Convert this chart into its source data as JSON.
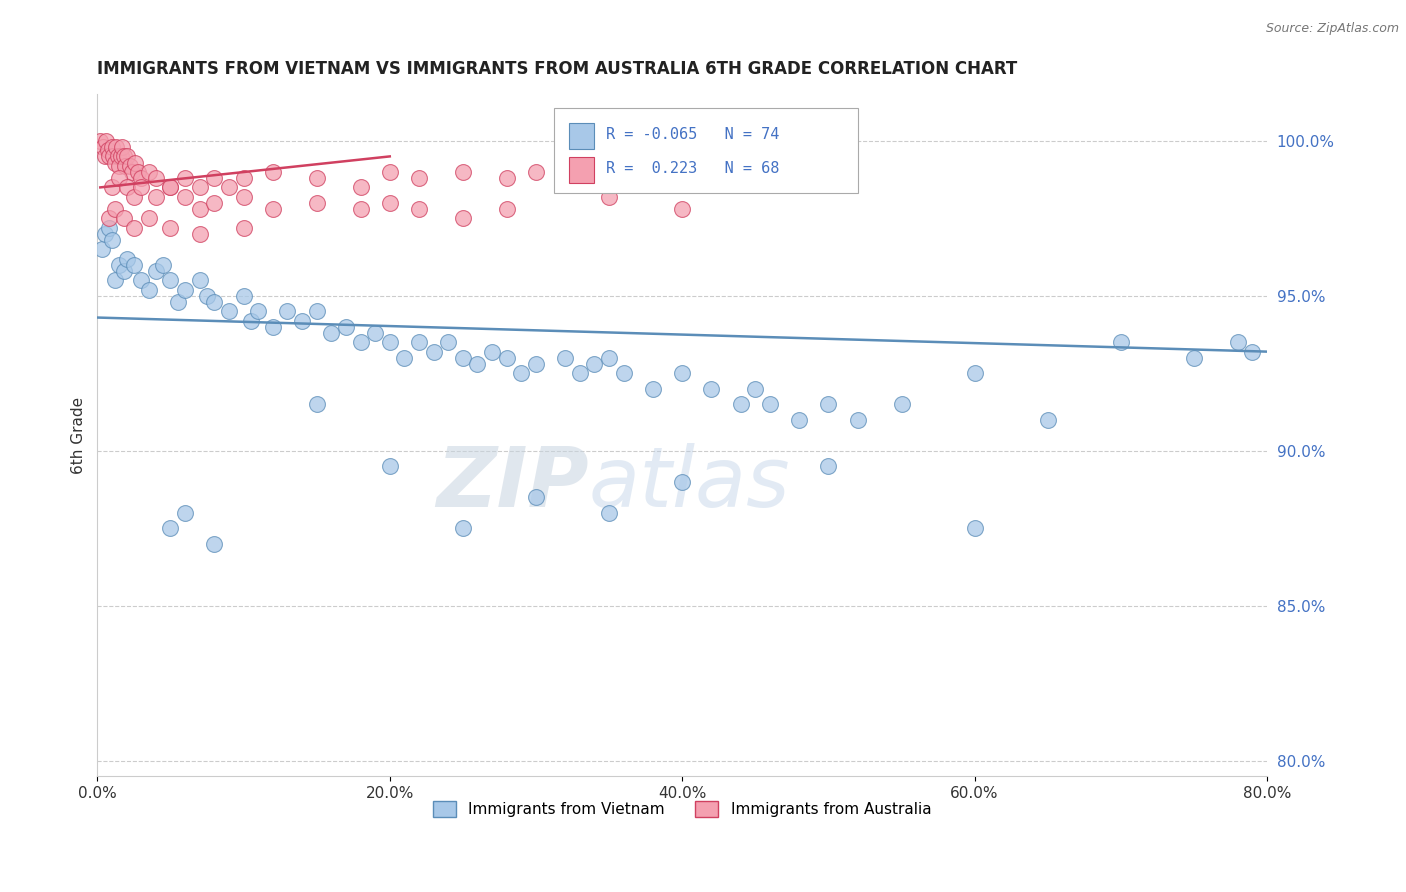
{
  "title": "IMMIGRANTS FROM VIETNAM VS IMMIGRANTS FROM AUSTRALIA 6TH GRADE CORRELATION CHART",
  "source": "Source: ZipAtlas.com",
  "ylabel": "6th Grade",
  "legend_label1": "Immigrants from Vietnam",
  "legend_label2": "Immigrants from Australia",
  "R1": "-0.065",
  "N1": "74",
  "R2": "0.223",
  "N2": "68",
  "xlim": [
    0.0,
    80.0
  ],
  "ylim": [
    79.5,
    101.5
  ],
  "yticks": [
    80.0,
    85.0,
    90.0,
    95.0,
    100.0
  ],
  "xticks": [
    0.0,
    20.0,
    40.0,
    60.0,
    80.0
  ],
  "color_vietnam": "#a8c8e8",
  "color_vietnam_edge": "#5b8db8",
  "color_australia": "#f4a0b0",
  "color_australia_edge": "#d04060",
  "color_vietnam_line": "#5b8db8",
  "color_australia_line": "#d04060",
  "watermark_zip": "ZIP",
  "watermark_atlas": "atlas",
  "vietnam_x": [
    0.3,
    0.5,
    0.8,
    1.0,
    1.2,
    1.5,
    1.8,
    2.0,
    2.5,
    3.0,
    3.5,
    4.0,
    4.5,
    5.0,
    5.5,
    6.0,
    7.0,
    7.5,
    8.0,
    9.0,
    10.0,
    10.5,
    11.0,
    12.0,
    13.0,
    14.0,
    15.0,
    16.0,
    17.0,
    18.0,
    19.0,
    20.0,
    21.0,
    22.0,
    23.0,
    24.0,
    25.0,
    26.0,
    27.0,
    28.0,
    29.0,
    30.0,
    32.0,
    33.0,
    34.0,
    35.0,
    36.0,
    38.0,
    40.0,
    42.0,
    44.0,
    45.0,
    46.0,
    48.0,
    50.0,
    52.0,
    55.0,
    60.0,
    65.0,
    70.0,
    75.0,
    78.0,
    79.0,
    5.0,
    6.0,
    8.0,
    15.0,
    20.0,
    25.0,
    30.0,
    35.0,
    40.0,
    50.0,
    60.0
  ],
  "vietnam_y": [
    96.5,
    97.0,
    97.2,
    96.8,
    95.5,
    96.0,
    95.8,
    96.2,
    96.0,
    95.5,
    95.2,
    95.8,
    96.0,
    95.5,
    94.8,
    95.2,
    95.5,
    95.0,
    94.8,
    94.5,
    95.0,
    94.2,
    94.5,
    94.0,
    94.5,
    94.2,
    94.5,
    93.8,
    94.0,
    93.5,
    93.8,
    93.5,
    93.0,
    93.5,
    93.2,
    93.5,
    93.0,
    92.8,
    93.2,
    93.0,
    92.5,
    92.8,
    93.0,
    92.5,
    92.8,
    93.0,
    92.5,
    92.0,
    92.5,
    92.0,
    91.5,
    92.0,
    91.5,
    91.0,
    91.5,
    91.0,
    91.5,
    92.5,
    91.0,
    93.5,
    93.0,
    93.5,
    93.2,
    87.5,
    88.0,
    87.0,
    91.5,
    89.5,
    87.5,
    88.5,
    88.0,
    89.0,
    89.5,
    87.5
  ],
  "australia_x": [
    0.2,
    0.4,
    0.5,
    0.6,
    0.7,
    0.8,
    1.0,
    1.1,
    1.2,
    1.3,
    1.4,
    1.5,
    1.6,
    1.7,
    1.8,
    1.9,
    2.0,
    2.2,
    2.4,
    2.6,
    2.8,
    3.0,
    3.5,
    4.0,
    5.0,
    6.0,
    7.0,
    8.0,
    9.0,
    10.0,
    12.0,
    15.0,
    18.0,
    20.0,
    22.0,
    25.0,
    28.0,
    30.0,
    35.0,
    40.0,
    1.0,
    1.5,
    2.0,
    2.5,
    3.0,
    4.0,
    5.0,
    6.0,
    7.0,
    8.0,
    10.0,
    12.0,
    15.0,
    18.0,
    20.0,
    22.0,
    25.0,
    28.0,
    35.0,
    40.0,
    0.8,
    1.2,
    1.8,
    2.5,
    3.5,
    5.0,
    7.0,
    10.0
  ],
  "australia_y": [
    100.0,
    99.8,
    99.5,
    100.0,
    99.7,
    99.5,
    99.8,
    99.5,
    99.3,
    99.8,
    99.5,
    99.2,
    99.5,
    99.8,
    99.5,
    99.2,
    99.5,
    99.2,
    99.0,
    99.3,
    99.0,
    98.8,
    99.0,
    98.8,
    98.5,
    98.8,
    98.5,
    98.8,
    98.5,
    98.8,
    99.0,
    98.8,
    98.5,
    99.0,
    98.8,
    99.0,
    98.8,
    99.0,
    99.2,
    99.0,
    98.5,
    98.8,
    98.5,
    98.2,
    98.5,
    98.2,
    98.5,
    98.2,
    97.8,
    98.0,
    98.2,
    97.8,
    98.0,
    97.8,
    98.0,
    97.8,
    97.5,
    97.8,
    98.2,
    97.8,
    97.5,
    97.8,
    97.5,
    97.2,
    97.5,
    97.2,
    97.0,
    97.2
  ],
  "viet_line_x": [
    0.0,
    80.0
  ],
  "viet_line_y": [
    94.3,
    93.2
  ],
  "aus_line_x": [
    0.2,
    20.0
  ],
  "aus_line_y": [
    98.5,
    99.5
  ]
}
